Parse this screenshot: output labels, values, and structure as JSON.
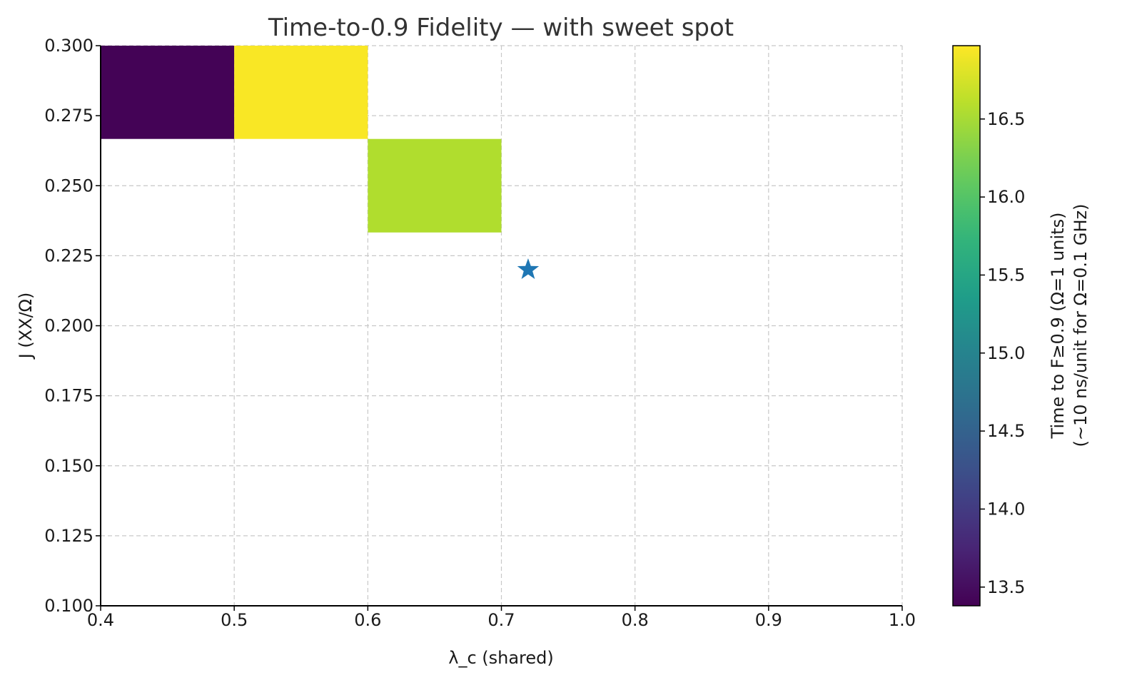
{
  "chart_data": {
    "type": "heatmap",
    "title": "Time-to-0.9 Fidelity — with sweet spot",
    "xlabel": "λ_c (shared)",
    "ylabel": "J (XX/Ω)",
    "xlim": [
      0.4,
      1.0
    ],
    "ylim": [
      0.1,
      0.3
    ],
    "xticks": [
      "0.4",
      "0.5",
      "0.6",
      "0.7",
      "0.8",
      "0.9",
      "1.0"
    ],
    "yticks": [
      "0.100",
      "0.125",
      "0.150",
      "0.175",
      "0.200",
      "0.225",
      "0.250",
      "0.275",
      "0.300"
    ],
    "grid": true,
    "cells": [
      {
        "x0": 0.4,
        "x1": 0.5,
        "y0": 0.2667,
        "y1": 0.3,
        "value": 13.4
      },
      {
        "x0": 0.5,
        "x1": 0.6,
        "y0": 0.2667,
        "y1": 0.3,
        "value": 16.95
      },
      {
        "x0": 0.6,
        "x1": 0.7,
        "y0": 0.2333,
        "y1": 0.2667,
        "value": 16.55
      }
    ],
    "marker": {
      "shape": "star",
      "x": 0.72,
      "y": 0.22,
      "color": "#1f77b4"
    },
    "colorbar": {
      "colormap": "viridis",
      "vmin": 13.38,
      "vmax": 16.97,
      "ticks": [
        "13.5",
        "14.0",
        "14.5",
        "15.0",
        "15.5",
        "16.0",
        "16.5"
      ],
      "label_line1": "Time to F≥0.9 (Ω=1 units)",
      "label_line2": "(~10 ns/unit for Ω=0.1 GHz)"
    }
  }
}
